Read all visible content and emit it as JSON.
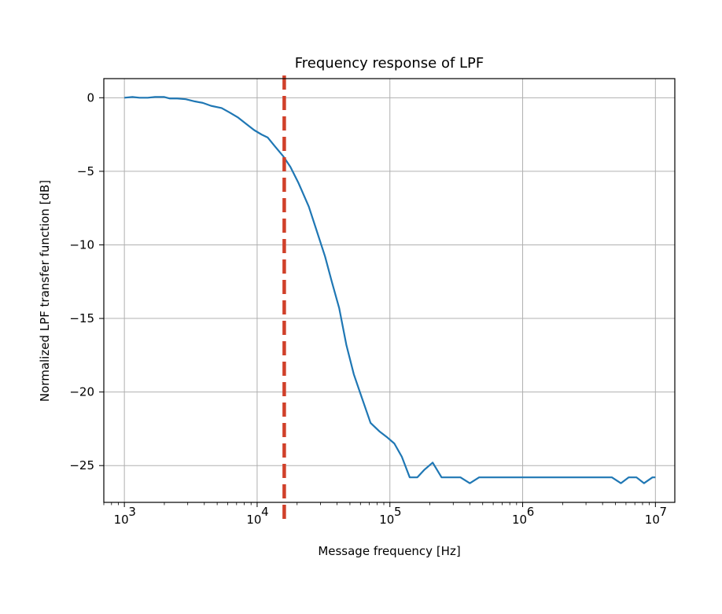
{
  "chart_data": {
    "type": "line",
    "title": "Frequency response of LPF",
    "xlabel": "Message frequency [Hz]",
    "ylabel": "Normalized LPF transfer function [dB]",
    "xscale": "log",
    "xlim": [
      700,
      14000000
    ],
    "ylim": [
      -27.5,
      1.3
    ],
    "xticks": [
      {
        "value": 1000,
        "base": "10",
        "exp": "3"
      },
      {
        "value": 10000,
        "base": "10",
        "exp": "4"
      },
      {
        "value": 100000,
        "base": "10",
        "exp": "5"
      },
      {
        "value": 1000000,
        "base": "10",
        "exp": "6"
      },
      {
        "value": 10000000,
        "base": "10",
        "exp": "7"
      }
    ],
    "yticks": [
      {
        "value": 0,
        "label": "0"
      },
      {
        "value": -5,
        "label": "−5"
      },
      {
        "value": -10,
        "label": "−10"
      },
      {
        "value": -15,
        "label": "−15"
      },
      {
        "value": -20,
        "label": "−20"
      },
      {
        "value": -25,
        "label": "−25"
      }
    ],
    "grid": true,
    "series": [
      {
        "color": "#1f77b4",
        "x": [
          1000,
          1150,
          1300,
          1500,
          1700,
          2000,
          2200,
          2500,
          2900,
          3400,
          3900,
          4500,
          5400,
          6200,
          7200,
          8200,
          9500,
          10800,
          12000,
          13600,
          15800,
          17800,
          20500,
          24500,
          28000,
          32500,
          36500,
          41500,
          47000,
          53500,
          61000,
          71500,
          84000,
          96000,
          108000,
          123000,
          141000,
          161000,
          181000,
          210000,
          245000,
          290000,
          340000,
          400000,
          470000,
          550000,
          630000,
          4700000,
          5500000,
          6300000,
          7200000,
          8200000,
          9500000,
          10000000
        ],
        "values": [
          0,
          0.05,
          0,
          0,
          0.05,
          0.05,
          -0.05,
          -0.05,
          -0.1,
          -0.25,
          -0.35,
          -0.55,
          -0.7,
          -1.0,
          -1.35,
          -1.75,
          -2.2,
          -2.5,
          -2.7,
          -3.3,
          -4.0,
          -4.7,
          -5.8,
          -7.4,
          -9.0,
          -10.8,
          -12.5,
          -14.3,
          -16.8,
          -18.8,
          -20.3,
          -22.1,
          -22.7,
          -23.1,
          -23.5,
          -24.4,
          -25.8,
          -25.8,
          -25.3,
          -24.8,
          -25.8,
          -25.8,
          -25.8,
          -26.2,
          -25.8,
          -25.8,
          -25.8,
          -25.8,
          -26.2,
          -25.8,
          -25.8,
          -26.2,
          -25.8,
          -25.8
        ]
      }
    ],
    "vline": {
      "x": 16000,
      "color": "#d0402a",
      "style": "dashed"
    }
  }
}
